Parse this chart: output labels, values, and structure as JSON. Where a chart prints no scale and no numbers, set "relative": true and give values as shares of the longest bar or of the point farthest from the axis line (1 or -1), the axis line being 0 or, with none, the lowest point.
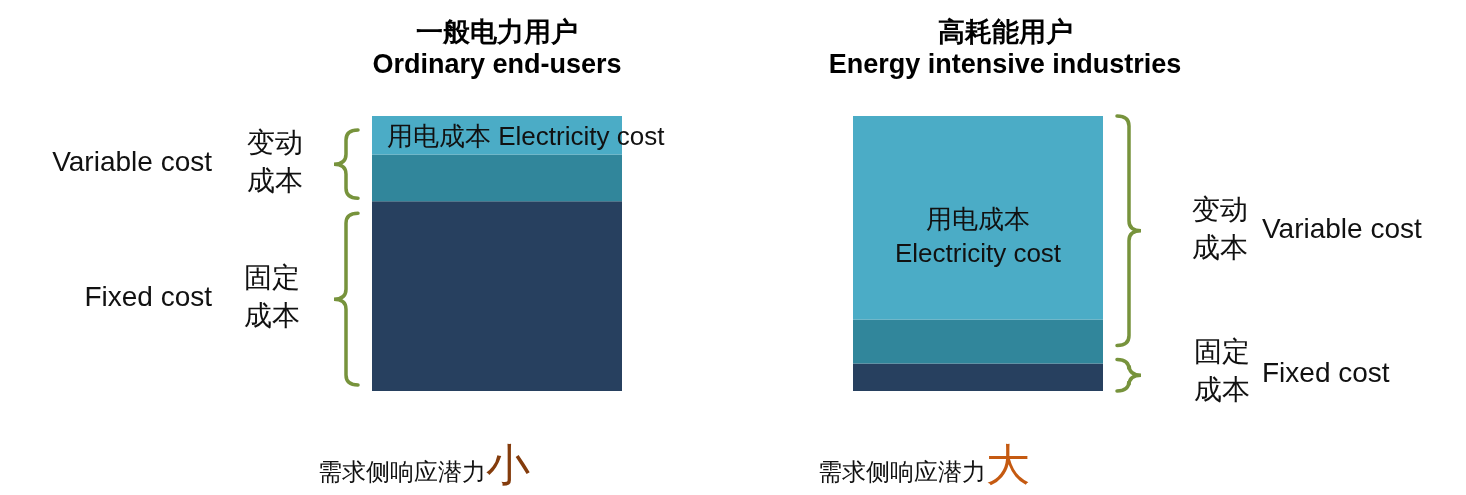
{
  "chart_data": [
    {
      "type": "bar",
      "stacked": true,
      "relative": true,
      "title": "一般电力用户\nOrdinary end-users",
      "categories": [
        null
      ],
      "series": [
        {
          "color": "#27405f",
          "values": [
            0.69
          ]
        },
        {
          "color": "#31869b",
          "values": [
            0.17
          ]
        },
        {
          "name": "用电成本 Electricity cost",
          "color": "#4bacc6",
          "values": [
            0.14
          ]
        }
      ],
      "annotations": [
        "Variable cost",
        "变动成本",
        "Fixed cost",
        "固定成本",
        "需求侧响应潜力小"
      ]
    },
    {
      "type": "bar",
      "stacked": true,
      "relative": true,
      "title": "高耗能用户\nEnergy intensive industries",
      "categories": [
        null
      ],
      "series": [
        {
          "color": "#27405f",
          "values": [
            0.1
          ]
        },
        {
          "color": "#31869b",
          "values": [
            0.16
          ]
        },
        {
          "name": "用电成本\nElectricity cost",
          "color": "#4bacc6",
          "values": [
            0.74
          ]
        }
      ],
      "annotations": [
        "Variable cost",
        "变动成本",
        "Fixed cost",
        "固定成本",
        "需求侧响应潜力大"
      ]
    }
  ]
}
